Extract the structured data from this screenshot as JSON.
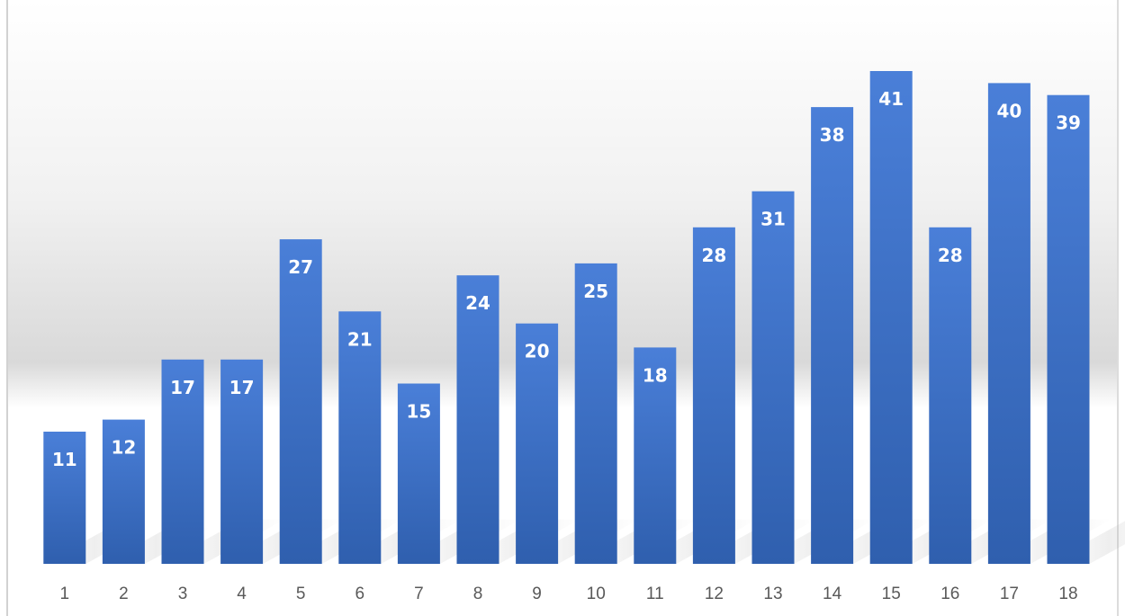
{
  "chart_data": {
    "type": "bar",
    "categories": [
      "1",
      "2",
      "3",
      "4",
      "5",
      "6",
      "7",
      "8",
      "9",
      "10",
      "11",
      "12",
      "13",
      "14",
      "15",
      "16",
      "17",
      "18"
    ],
    "values": [
      11,
      12,
      17,
      17,
      27,
      21,
      15,
      24,
      20,
      25,
      18,
      28,
      31,
      38,
      41,
      28,
      40,
      39
    ],
    "ylim": [
      0,
      41
    ],
    "grid": false,
    "data_labels": "inside-top",
    "colors": {
      "bar_top": "#4a7fd8",
      "bar_bottom": "#2f5fae",
      "label": "#ffffff",
      "tick": "#595959"
    }
  }
}
